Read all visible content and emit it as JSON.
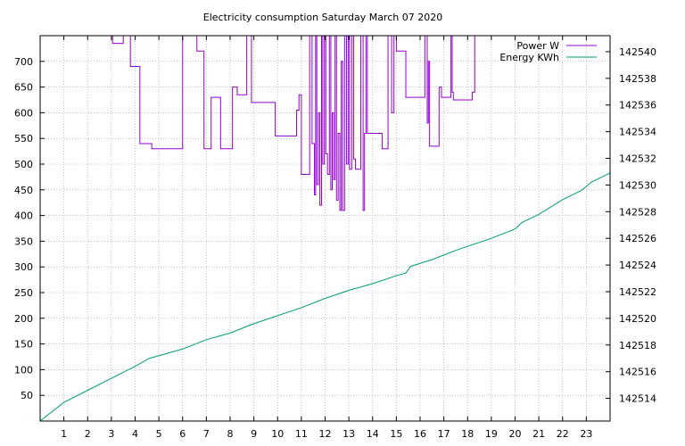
{
  "chart_data": {
    "type": "line",
    "title": "Electricity consumption Saturday March 07 2020",
    "xlim": [
      0,
      24
    ],
    "x_ticks": [
      1,
      2,
      3,
      4,
      5,
      6,
      7,
      8,
      9,
      10,
      11,
      12,
      13,
      14,
      15,
      16,
      17,
      18,
      19,
      20,
      21,
      22,
      23
    ],
    "y_left": {
      "lim": [
        0,
        750
      ],
      "ticks": [
        50,
        100,
        150,
        200,
        250,
        300,
        350,
        400,
        450,
        500,
        550,
        600,
        650,
        700
      ]
    },
    "y_right": {
      "lim": [
        142512.3,
        142541.2
      ],
      "ticks": [
        142514,
        142516,
        142518,
        142520,
        142522,
        142524,
        142526,
        142528,
        142530,
        142532,
        142534,
        142536,
        142538,
        142540
      ]
    },
    "grid": true,
    "legend_position": "top-right",
    "series": [
      {
        "name": "Power W",
        "axis": "left",
        "color": "#9400d3",
        "points": [
          [
            3.05,
            760
          ],
          [
            3.05,
            735
          ],
          [
            3.5,
            735
          ],
          [
            3.5,
            760
          ],
          [
            3.8,
            760
          ],
          [
            3.8,
            690
          ],
          [
            4.2,
            690
          ],
          [
            4.2,
            540
          ],
          [
            4.7,
            540
          ],
          [
            4.7,
            530
          ],
          [
            6.0,
            530
          ],
          [
            6.0,
            760
          ],
          [
            6.6,
            760
          ],
          [
            6.6,
            720
          ],
          [
            6.9,
            720
          ],
          [
            6.9,
            530
          ],
          [
            7.2,
            530
          ],
          [
            7.2,
            630
          ],
          [
            7.6,
            630
          ],
          [
            7.6,
            530
          ],
          [
            8.1,
            530
          ],
          [
            8.1,
            650
          ],
          [
            8.3,
            650
          ],
          [
            8.3,
            635
          ],
          [
            8.7,
            635
          ],
          [
            8.7,
            760
          ],
          [
            8.9,
            760
          ],
          [
            8.9,
            620
          ],
          [
            9.9,
            620
          ],
          [
            9.9,
            555
          ],
          [
            10.8,
            555
          ],
          [
            10.8,
            605
          ],
          [
            10.9,
            605
          ],
          [
            10.9,
            635
          ],
          [
            11.0,
            635
          ],
          [
            11.0,
            480
          ],
          [
            11.35,
            480
          ],
          [
            11.35,
            760
          ],
          [
            11.45,
            760
          ],
          [
            11.45,
            540
          ],
          [
            11.55,
            540
          ],
          [
            11.55,
            440
          ],
          [
            11.6,
            440
          ],
          [
            11.6,
            760
          ],
          [
            11.65,
            760
          ],
          [
            11.65,
            460
          ],
          [
            11.72,
            460
          ],
          [
            11.72,
            600
          ],
          [
            11.78,
            600
          ],
          [
            11.78,
            420
          ],
          [
            11.85,
            420
          ],
          [
            11.85,
            760
          ],
          [
            11.9,
            760
          ],
          [
            11.9,
            500
          ],
          [
            11.97,
            500
          ],
          [
            11.97,
            760
          ],
          [
            12.03,
            760
          ],
          [
            12.03,
            520
          ],
          [
            12.1,
            520
          ],
          [
            12.1,
            480
          ],
          [
            12.18,
            480
          ],
          [
            12.18,
            760
          ],
          [
            12.24,
            760
          ],
          [
            12.24,
            450
          ],
          [
            12.3,
            450
          ],
          [
            12.3,
            600
          ],
          [
            12.36,
            600
          ],
          [
            12.36,
            470
          ],
          [
            12.42,
            470
          ],
          [
            12.42,
            760
          ],
          [
            12.48,
            760
          ],
          [
            12.48,
            430
          ],
          [
            12.55,
            430
          ],
          [
            12.55,
            560
          ],
          [
            12.62,
            560
          ],
          [
            12.62,
            410
          ],
          [
            12.68,
            410
          ],
          [
            12.68,
            700
          ],
          [
            12.74,
            700
          ],
          [
            12.74,
            410
          ],
          [
            12.82,
            410
          ],
          [
            12.82,
            760
          ],
          [
            12.9,
            760
          ],
          [
            12.9,
            500
          ],
          [
            12.97,
            500
          ],
          [
            12.97,
            760
          ],
          [
            13.03,
            760
          ],
          [
            13.03,
            490
          ],
          [
            13.12,
            490
          ],
          [
            13.12,
            760
          ],
          [
            13.2,
            760
          ],
          [
            13.2,
            510
          ],
          [
            13.28,
            510
          ],
          [
            13.28,
            490
          ],
          [
            13.5,
            490
          ],
          [
            13.5,
            760
          ],
          [
            13.6,
            760
          ],
          [
            13.6,
            410
          ],
          [
            13.66,
            410
          ],
          [
            13.66,
            560
          ],
          [
            13.72,
            560
          ],
          [
            13.72,
            760
          ],
          [
            13.78,
            760
          ],
          [
            13.78,
            560
          ],
          [
            14.4,
            560
          ],
          [
            14.4,
            530
          ],
          [
            14.65,
            530
          ],
          [
            14.65,
            760
          ],
          [
            14.8,
            760
          ],
          [
            14.8,
            600
          ],
          [
            14.9,
            600
          ],
          [
            14.9,
            760
          ],
          [
            15.0,
            760
          ],
          [
            15.0,
            720
          ],
          [
            15.4,
            720
          ],
          [
            15.4,
            630
          ],
          [
            16.2,
            630
          ],
          [
            16.2,
            760
          ],
          [
            16.3,
            760
          ],
          [
            16.3,
            580
          ],
          [
            16.35,
            580
          ],
          [
            16.35,
            700
          ],
          [
            16.4,
            700
          ],
          [
            16.4,
            535
          ],
          [
            16.8,
            535
          ],
          [
            16.8,
            650
          ],
          [
            16.9,
            650
          ],
          [
            16.9,
            630
          ],
          [
            17.3,
            630
          ],
          [
            17.3,
            760
          ],
          [
            17.35,
            760
          ],
          [
            17.35,
            640
          ],
          [
            17.4,
            640
          ],
          [
            17.4,
            625
          ],
          [
            18.2,
            625
          ],
          [
            18.2,
            640
          ],
          [
            18.3,
            640
          ],
          [
            18.3,
            760
          ]
        ]
      },
      {
        "name": "Energy KWh",
        "axis": "right",
        "color": "#009e73",
        "points": [
          [
            0,
            142512.3
          ],
          [
            1.0,
            142513.7
          ],
          [
            2.0,
            142514.6
          ],
          [
            3.0,
            142515.5
          ],
          [
            4.0,
            142516.4
          ],
          [
            4.6,
            142517.0
          ],
          [
            5.2,
            142517.3
          ],
          [
            6.0,
            142517.7
          ],
          [
            7.0,
            142518.4
          ],
          [
            8.0,
            142518.9
          ],
          [
            9.0,
            142519.6
          ],
          [
            10.0,
            142520.2
          ],
          [
            11.0,
            142520.8
          ],
          [
            12.0,
            142521.5
          ],
          [
            13.0,
            142522.1
          ],
          [
            14.0,
            142522.6
          ],
          [
            15.0,
            142523.2
          ],
          [
            15.4,
            142523.4
          ],
          [
            15.6,
            142523.9
          ],
          [
            16.5,
            142524.4
          ],
          [
            17.5,
            142525.1
          ],
          [
            19.0,
            142526.0
          ],
          [
            20.0,
            142526.7
          ],
          [
            20.3,
            142527.2
          ],
          [
            21.0,
            142527.8
          ],
          [
            22.0,
            142528.9
          ],
          [
            22.8,
            142529.6
          ],
          [
            23.2,
            142530.2
          ],
          [
            24.0,
            142530.9
          ]
        ]
      }
    ]
  }
}
